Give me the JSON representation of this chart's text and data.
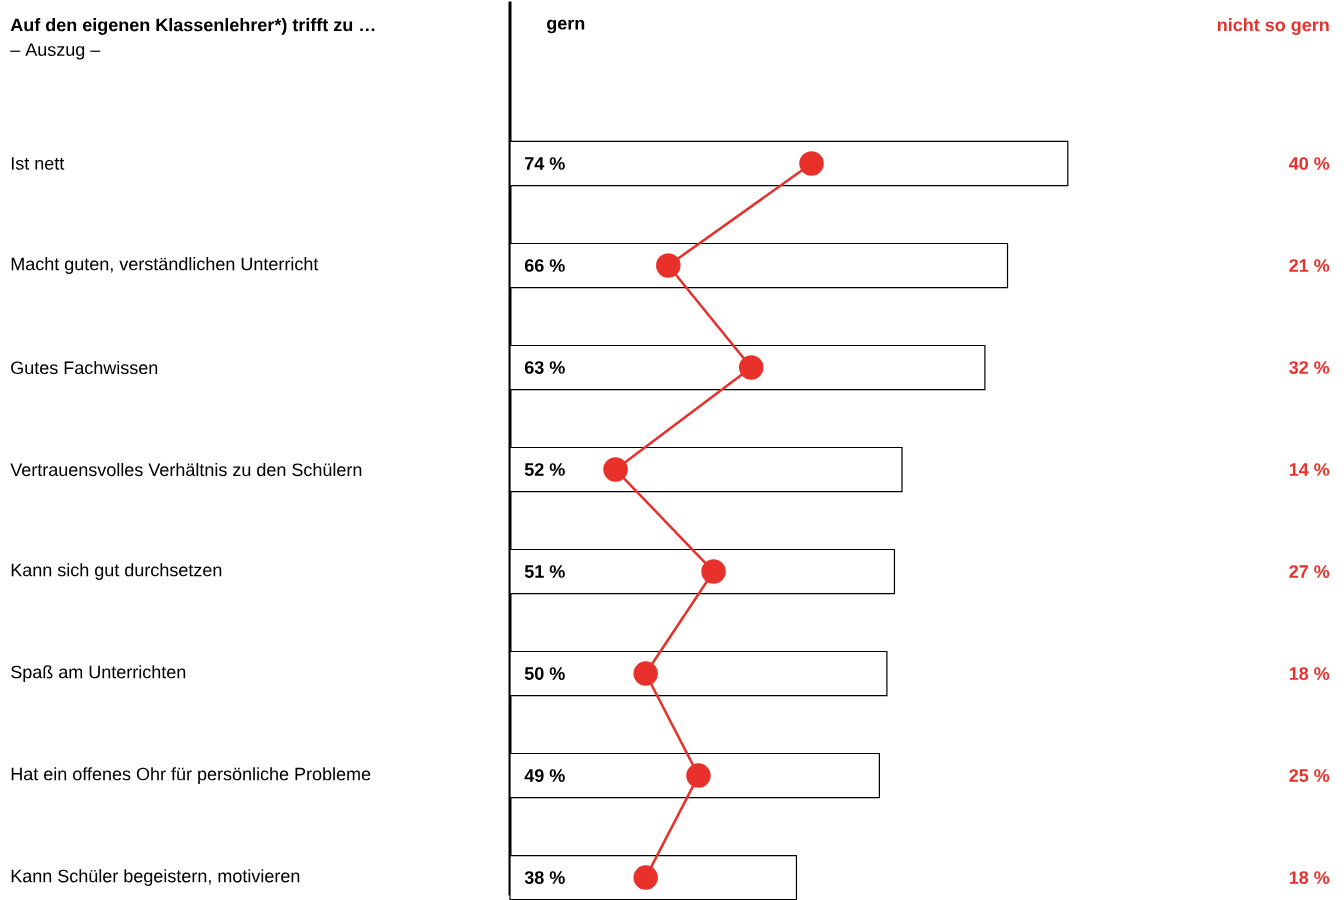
{
  "chart_data": {
    "type": "bar",
    "orientation": "horizontal",
    "title": "Auf den eigenen Klassenlehrer*) trifft zu …",
    "subtitle": "– Auszug –",
    "categories": [
      "Ist nett",
      "Macht guten, verständlichen Unterricht",
      "Gutes Fachwissen",
      "Vertrauensvolles Verhältnis zu den Schülern",
      "Kann sich gut durchsetzen",
      "Spaß am Unterrichten",
      "Hat ein offenes Ohr für persönliche Probleme",
      "Kann Schüler begeistern, motivieren"
    ],
    "series": [
      {
        "name": "gern",
        "color": "#ffffff",
        "values": [
          74,
          66,
          63,
          52,
          51,
          50,
          49,
          38
        ],
        "value_labels": [
          "74 %",
          "66 %",
          "63 %",
          "52 %",
          "51 %",
          "50 %",
          "49 %",
          "38 %"
        ]
      },
      {
        "name": "nicht so gern",
        "type": "line",
        "color": "#e8312a",
        "marker": "circle",
        "values": [
          40,
          21,
          32,
          14,
          27,
          18,
          25,
          18
        ],
        "value_labels": [
          "40 %",
          "21 %",
          "32 %",
          "14 %",
          "27 %",
          "18 %",
          "25 %",
          "18 %"
        ]
      }
    ]
  }
}
